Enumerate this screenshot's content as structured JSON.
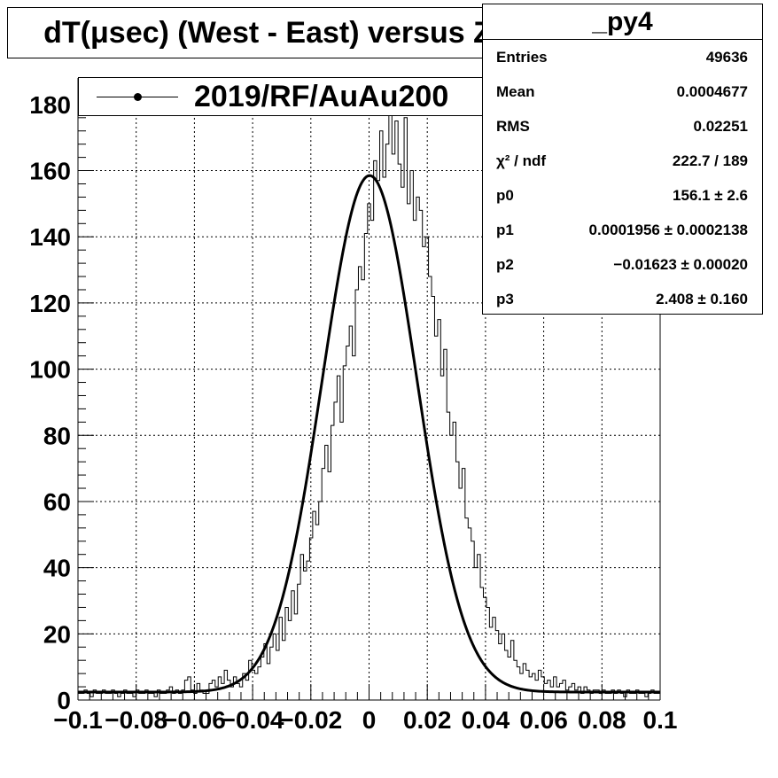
{
  "title": "dT(μsec) (West - East) versus Z",
  "legend": {
    "label": "2019/RF/AuAu200"
  },
  "stats": {
    "title": "_py4",
    "rows": [
      {
        "name": "Entries",
        "value": "49636"
      },
      {
        "name": "Mean",
        "value": "0.0004677"
      },
      {
        "name": "RMS",
        "value": "0.02251"
      },
      {
        "name": "χ² / ndf",
        "value": "222.7 / 189"
      },
      {
        "name": "p0",
        "value": "156.1 ± 2.6"
      },
      {
        "name": "p1",
        "value": "0.0001956 ± 0.0002138"
      },
      {
        "name": "p2",
        "value": "−0.01623 ± 0.00020"
      },
      {
        "name": "p3",
        "value": "2.408 ± 0.160"
      }
    ]
  },
  "chart_data": {
    "type": "line",
    "title": "dT(μsec) (West - East) versus Z",
    "xlabel": "",
    "ylabel": "",
    "xlim": [
      -0.1,
      0.1
    ],
    "ylim": [
      0,
      188
    ],
    "grid": true,
    "legend_position": "top-left",
    "x_ticks": [
      "−0.1",
      "−0.08",
      "−0.06",
      "−0.04",
      "−0.02",
      "0",
      "0.02",
      "0.04",
      "0.06",
      "0.08",
      "0.1"
    ],
    "y_ticks": [
      "0",
      "20",
      "40",
      "60",
      "80",
      "100",
      "120",
      "140",
      "160",
      "180"
    ],
    "series": [
      {
        "name": "2019/RF/AuAu200",
        "kind": "histogram",
        "bin_edges": [
          -0.1,
          0.1
        ],
        "values": [
          2,
          2,
          3,
          2,
          1,
          3,
          2,
          2,
          3,
          2,
          2,
          3,
          2,
          1,
          2,
          3,
          2,
          2,
          1,
          3,
          2,
          2,
          3,
          2,
          2,
          1,
          3,
          2,
          2,
          3,
          4,
          2,
          3,
          2,
          3,
          6,
          7,
          3,
          2,
          5,
          3,
          2,
          2,
          5,
          6,
          4,
          7,
          5,
          9,
          6,
          4,
          7,
          5,
          4,
          8,
          6,
          12,
          9,
          8,
          10,
          13,
          17,
          11,
          16,
          20,
          15,
          25,
          18,
          28,
          24,
          33,
          26,
          35,
          44,
          39,
          42,
          49,
          57,
          53,
          60,
          70,
          77,
          69,
          83,
          90,
          98,
          84,
          101,
          107,
          113,
          104,
          124,
          131,
          127,
          141,
          150,
          145,
          163,
          157,
          172,
          158,
          168,
          187,
          165,
          175,
          162,
          155,
          176,
          150,
          160,
          145,
          152,
          148,
          137,
          140,
          128,
          122,
          110,
          115,
          98,
          106,
          87,
          80,
          84,
          72,
          64,
          70,
          55,
          52,
          48,
          40,
          44,
          34,
          31,
          28,
          22,
          25,
          21,
          17,
          20,
          15,
          13,
          18,
          12,
          10,
          8,
          11,
          9,
          7,
          8,
          6,
          9,
          7,
          5,
          6,
          4,
          7,
          4,
          5,
          6,
          3,
          4,
          5,
          3,
          4,
          2,
          4,
          3,
          2,
          3,
          3,
          2,
          3,
          2,
          2,
          3,
          2,
          3,
          2,
          1,
          3,
          2,
          2,
          3,
          2,
          2,
          1,
          2,
          3,
          2,
          2
        ]
      },
      {
        "name": "fit",
        "kind": "gaussian_fit",
        "p0": 156.1,
        "p1": 0.0001956,
        "p2": -0.01623,
        "p3": 2.408
      }
    ]
  }
}
